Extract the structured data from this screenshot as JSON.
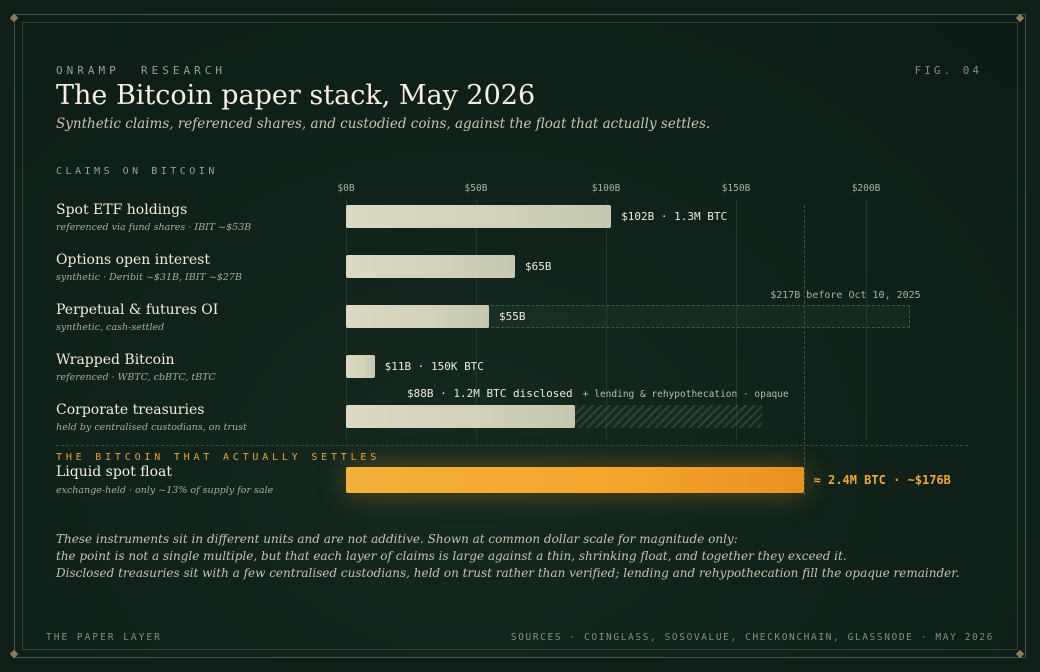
{
  "header": {
    "kicker": "ONRAMP  RESEARCH",
    "fig": "FIG. 04",
    "title": "The Bitcoin paper stack, May 2026",
    "subtitle": "Synthetic claims, referenced shares, and custodied coins, against the float that actually settles."
  },
  "section_claims": "CLAIMS ON BITCOIN",
  "section_float": "THE BITCOIN THAT ACTUALLY SETTLES",
  "chart_data": {
    "type": "bar",
    "orientation": "horizontal",
    "xlim": [
      0,
      217
    ],
    "x_unit": "$B",
    "x_ticks": [
      {
        "value": 0,
        "label": "$0B"
      },
      {
        "value": 50,
        "label": "$50B"
      },
      {
        "value": 100,
        "label": "$100B"
      },
      {
        "value": 150,
        "label": "$150B"
      },
      {
        "value": 200,
        "label": "$200B"
      }
    ],
    "reference_line": 176,
    "rows": [
      {
        "name": "Spot ETF holdings",
        "note": "referenced via fund shares · IBIT ~$53B",
        "value": 102,
        "label": "$102B · 1.3M BTC"
      },
      {
        "name": "Options open interest",
        "note": "synthetic · Deribit ~$31B, IBIT ~$27B",
        "value": 65,
        "label": "$65B"
      },
      {
        "name": "Perpetual & futures OI",
        "note": "synthetic, cash-settled",
        "value": 55,
        "label": "$55B",
        "prior_value": 217,
        "prior_label": "$217B before Oct 10, 2025"
      },
      {
        "name": "Wrapped Bitcoin",
        "note": "referenced · WBTC, cbBTC, tBTC",
        "value": 11,
        "label": "$11B · 150K BTC"
      },
      {
        "name": "Corporate treasuries",
        "note": "held by centralised custodians, on trust",
        "value": 88,
        "label": "$88B · 1.2M BTC disclosed",
        "opaque_to": 160,
        "opaque_label": "+ lending & rehypothecation · opaque"
      }
    ],
    "float": {
      "name": "Liquid spot float",
      "note": "exchange-held · only ~13% of supply for sale",
      "value": 176,
      "label": "≈ 2.4M BTC · ~$176B"
    }
  },
  "footnotes": [
    "These instruments sit in different units and are not additive. Shown at common dollar scale for magnitude only:",
    "the point is not a single multiple, but that each layer of claims is large against a thin, shrinking float, and together they exceed it.",
    "Disclosed treasuries sit with a few centralised custodians, held on trust rather than verified; lending and rehypothecation fill the opaque remainder."
  ],
  "footer": {
    "left": "THE PAPER LAYER",
    "right": "SOURCES · COINGLASS, SOSOVALUE, CHECKONCHAIN, GLASSNODE · MAY 2026"
  },
  "colors": {
    "accent": "#f5a52c",
    "bar": "#d5d3bd",
    "background": "#0f1f18"
  }
}
